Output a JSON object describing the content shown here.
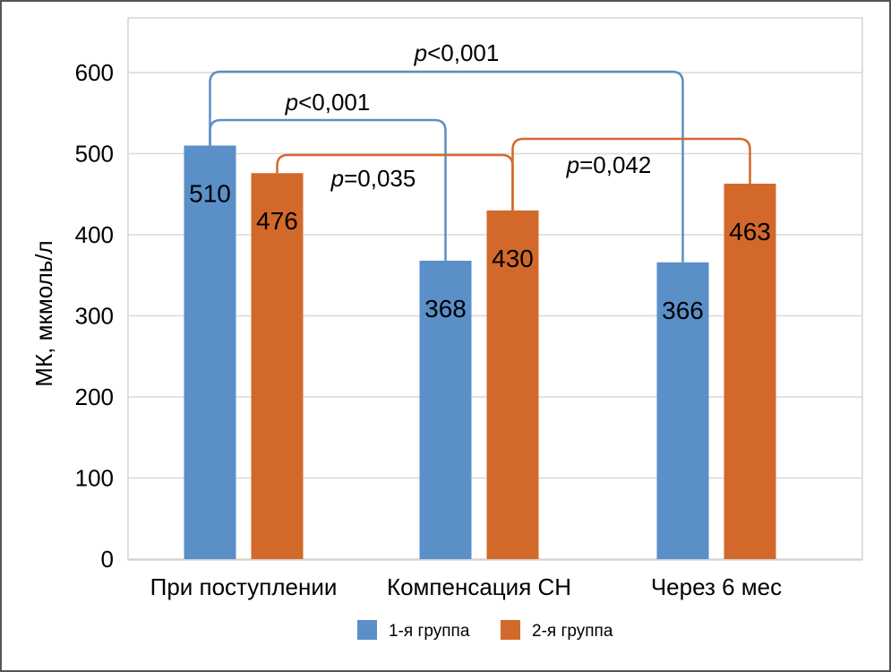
{
  "chart_data": {
    "type": "bar",
    "categories": [
      "При поступлении",
      "Компенсация СН",
      "Через 6 мес"
    ],
    "series": [
      {
        "name": "1-я группа",
        "color": "#5b8fc7",
        "values": [
          510,
          368,
          366
        ]
      },
      {
        "name": "2-я группа",
        "color": "#d2692a",
        "values": [
          476,
          430,
          463
        ]
      }
    ],
    "data_labels": [
      [
        "510",
        "368",
        "366"
      ],
      [
        "476",
        "430",
        "463"
      ]
    ],
    "ylabel": "МК, мкмоль/л",
    "ylim": [
      0,
      600
    ],
    "yticks": [
      0,
      100,
      200,
      300,
      400,
      500,
      600
    ],
    "ytick_labels": [
      "0",
      "100",
      "200",
      "300",
      "400",
      "500",
      "600"
    ],
    "grid": true,
    "legend_position": "bottom",
    "comparisons": [
      {
        "series": 0,
        "from": 0,
        "to": 2,
        "prefix": "p",
        "rest": "<0,001"
      },
      {
        "series": 0,
        "from": 0,
        "to": 1,
        "prefix": "p",
        "rest": "<0,001"
      },
      {
        "series": 1,
        "from": 0,
        "to": 1,
        "prefix": "p",
        "rest": "=0,035"
      },
      {
        "series": 1,
        "from": 1,
        "to": 2,
        "prefix": "p",
        "rest": "=0,042"
      }
    ]
  }
}
